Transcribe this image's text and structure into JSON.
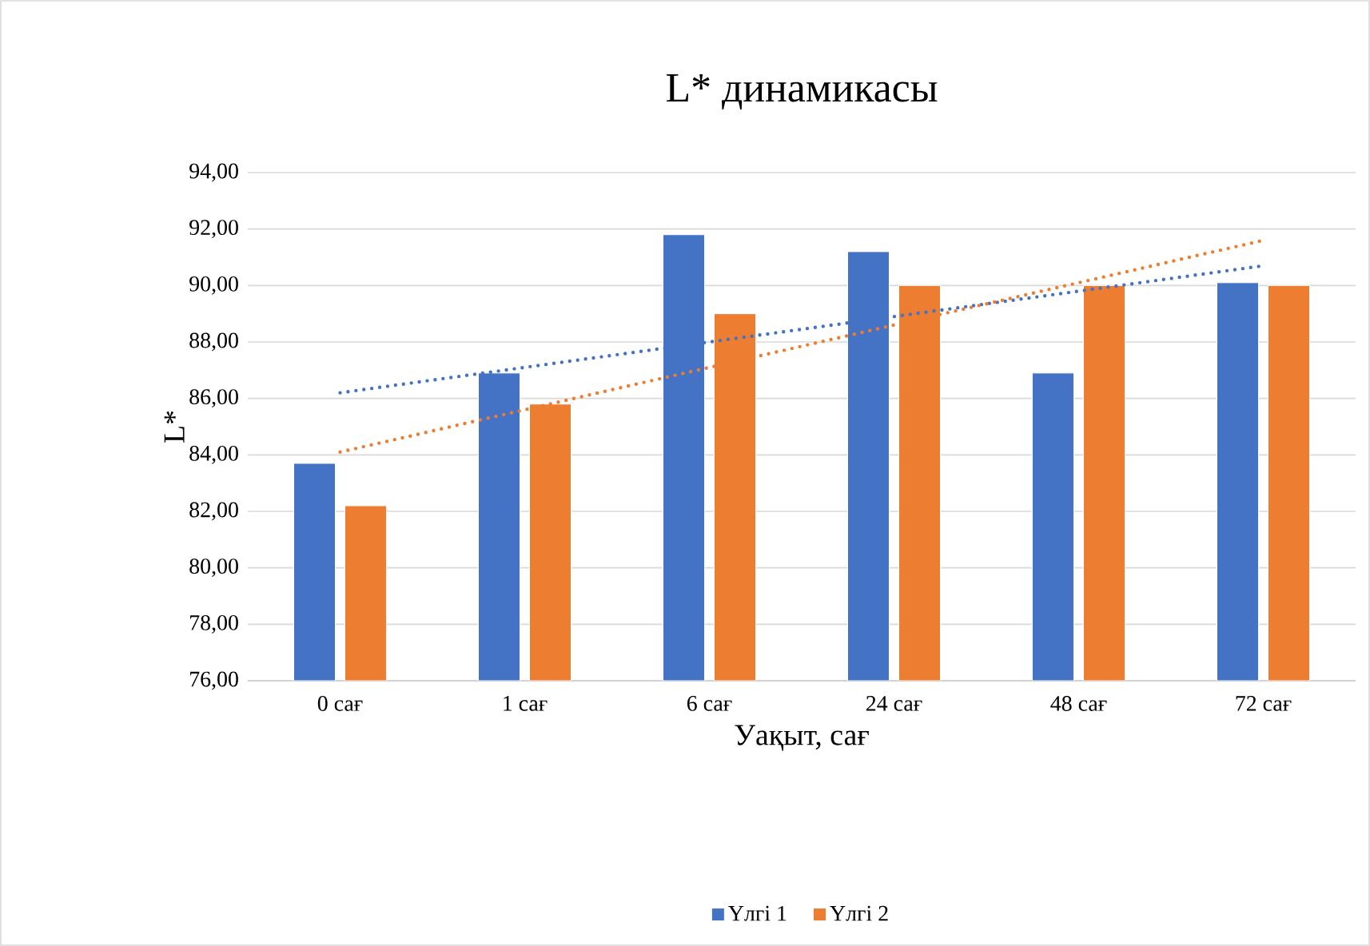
{
  "chart_data": {
    "type": "bar",
    "title": "L* динамикасы",
    "xlabel": "Уақыт, сағ",
    "ylabel": "L*",
    "categories": [
      "0 сағ",
      "1 сағ",
      "6 сағ",
      "24 сағ",
      "48 сағ",
      "72 сағ"
    ],
    "series": [
      {
        "name": "Үлгі 1",
        "color": "#4472c4",
        "values": [
          83.7,
          86.9,
          91.8,
          91.2,
          86.9,
          90.1
        ]
      },
      {
        "name": "Үлгі 2",
        "color": "#ed7d31",
        "values": [
          82.2,
          85.8,
          89.0,
          90.0,
          90.0,
          90.0
        ]
      },
      {
        "type": "line",
        "line_style": "dotted",
        "color": "#4472c4",
        "x": [
          "0 сағ",
          "72 сағ"
        ],
        "values": [
          86.2,
          90.7
        ]
      },
      {
        "type": "line",
        "line_style": "dotted",
        "color": "#ed7d31",
        "x": [
          "0 сағ",
          "72 сағ"
        ],
        "values": [
          84.1,
          91.6
        ]
      }
    ],
    "ylim": [
      76,
      94
    ],
    "yticks": [
      {
        "value": 76,
        "label": "76,00"
      },
      {
        "value": 78,
        "label": "78,00"
      },
      {
        "value": 80,
        "label": "80,00"
      },
      {
        "value": 82,
        "label": "82,00"
      },
      {
        "value": 84,
        "label": "84,00"
      },
      {
        "value": 86,
        "label": "86,00"
      },
      {
        "value": 88,
        "label": "88,00"
      },
      {
        "value": 90,
        "label": "90,00"
      },
      {
        "value": 92,
        "label": "92,00"
      },
      {
        "value": 94,
        "label": "94,00"
      }
    ],
    "grid": "y",
    "legend": "bottom"
  }
}
